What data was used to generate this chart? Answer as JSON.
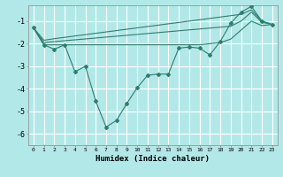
{
  "xlabel": "Humidex (Indice chaleur)",
  "bg_color": "#b3e8e8",
  "grid_color": "#ffffff",
  "line_color": "#2e7d6e",
  "x_values": [
    0,
    1,
    2,
    3,
    4,
    5,
    6,
    7,
    8,
    9,
    10,
    11,
    12,
    13,
    14,
    15,
    16,
    17,
    18,
    19,
    20,
    21,
    22,
    23
  ],
  "main_line": [
    -1.3,
    -2.05,
    -2.25,
    -2.05,
    -3.25,
    -3.0,
    -4.55,
    -5.7,
    -5.4,
    -4.65,
    -3.95,
    -3.4,
    -3.35,
    -3.35,
    -2.2,
    -2.15,
    -2.2,
    -2.5,
    -1.9,
    -1.1,
    -0.6,
    -0.35,
    -1.0,
    -1.15
  ],
  "upper_line": [
    -1.3,
    -1.85,
    -1.78,
    -1.72,
    -1.66,
    -1.6,
    -1.54,
    -1.48,
    -1.42,
    -1.36,
    -1.3,
    -1.24,
    -1.18,
    -1.12,
    -1.06,
    -1.0,
    -0.94,
    -0.88,
    -0.82,
    -0.76,
    -0.7,
    -0.5,
    -1.0,
    -1.15
  ],
  "middle_line": [
    -1.3,
    -1.95,
    -1.91,
    -1.87,
    -1.83,
    -1.79,
    -1.75,
    -1.71,
    -1.67,
    -1.63,
    -1.59,
    -1.55,
    -1.51,
    -1.47,
    -1.43,
    -1.39,
    -1.35,
    -1.31,
    -1.27,
    -1.23,
    -1.0,
    -0.6,
    -1.05,
    -1.15
  ],
  "lower_line": [
    -1.3,
    -2.05,
    -2.05,
    -2.05,
    -2.05,
    -2.05,
    -2.05,
    -2.05,
    -2.05,
    -2.05,
    -2.05,
    -2.05,
    -2.05,
    -2.05,
    -2.05,
    -2.05,
    -2.05,
    -2.0,
    -1.95,
    -1.8,
    -1.4,
    -1.0,
    -1.2,
    -1.15
  ],
  "ylim": [
    -6.5,
    -0.3
  ],
  "xlim": [
    -0.5,
    23.5
  ],
  "yticks": [
    -6,
    -5,
    -4,
    -3,
    -2,
    -1
  ],
  "xticks": [
    0,
    1,
    2,
    3,
    4,
    5,
    6,
    7,
    8,
    9,
    10,
    11,
    12,
    13,
    14,
    15,
    16,
    17,
    18,
    19,
    20,
    21,
    22,
    23
  ]
}
